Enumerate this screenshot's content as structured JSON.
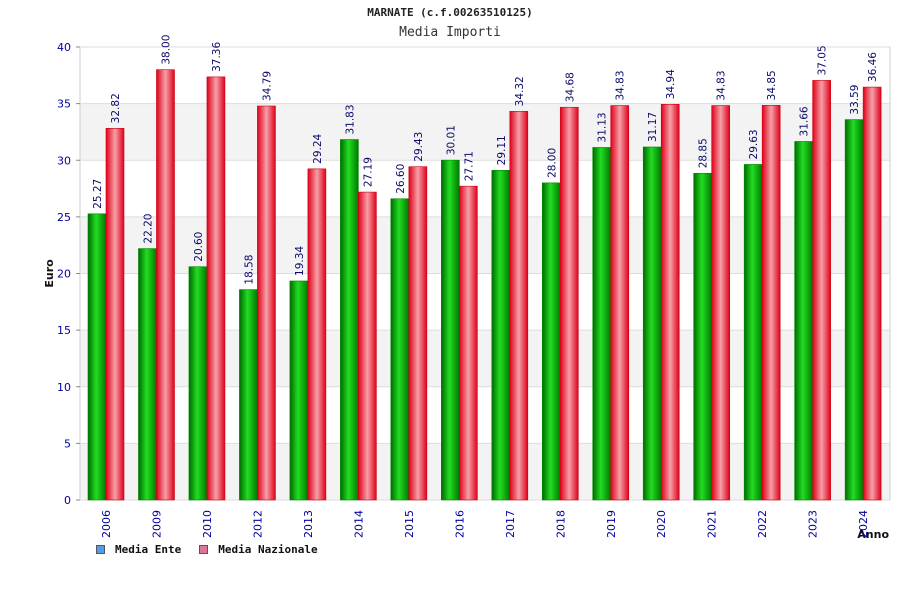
{
  "chart_data": {
    "type": "bar",
    "title": "MARNATE (c.f.00263510125)",
    "subtitle": "Media Importi",
    "xlabel": "Anno",
    "ylabel": "Euro",
    "ylim": [
      0,
      40
    ],
    "yticks": [
      0,
      5,
      10,
      15,
      20,
      25,
      30,
      35,
      40
    ],
    "grid": true,
    "legend_position": "bottom-left",
    "categories": [
      "2006",
      "2009",
      "2010",
      "2012",
      "2013",
      "2014",
      "2015",
      "2016",
      "2017",
      "2018",
      "2019",
      "2020",
      "2021",
      "2022",
      "2023",
      "2024"
    ],
    "series": [
      {
        "name": "Media Ente",
        "color": "#00a800",
        "legend_color": "#5599ee",
        "values": [
          25.27,
          22.2,
          20.6,
          18.58,
          19.34,
          31.83,
          26.6,
          30.01,
          29.11,
          28.0,
          31.13,
          31.17,
          28.85,
          29.63,
          31.66,
          33.59
        ],
        "labels": [
          "25.27",
          "22.20",
          "20.60",
          "18.58",
          "19.34",
          "31.83",
          "26.60",
          "30.01",
          "29.11",
          "28.00",
          "31.13",
          "31.17",
          "28.85",
          "29.63",
          "31.66",
          "33.59"
        ]
      },
      {
        "name": "Media Nazionale",
        "color": "#e8101c",
        "legend_color": "#dd7799",
        "values": [
          32.82,
          38.0,
          37.36,
          34.79,
          29.24,
          27.19,
          29.43,
          27.71,
          34.32,
          34.68,
          34.83,
          34.94,
          34.83,
          34.85,
          37.05,
          36.46
        ],
        "labels": [
          "32.82",
          "38.00",
          "37.36",
          "34.79",
          "29.24",
          "27.19",
          "29.43",
          "27.71",
          "34.32",
          "34.68",
          "34.83",
          "34.94",
          "34.83",
          "34.85",
          "37.05",
          "36.46"
        ]
      }
    ]
  }
}
